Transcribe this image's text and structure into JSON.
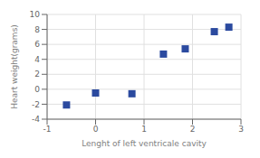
{
  "chart_data": {
    "type": "scatter",
    "x": [
      -0.6,
      0.0,
      0.75,
      1.4,
      1.85,
      2.45,
      2.75
    ],
    "values": [
      -2.1,
      -0.5,
      -0.6,
      4.7,
      5.4,
      7.7,
      8.3
    ],
    "color": "#2b4a9f",
    "marker": "square",
    "xlabel": "Lenght of left ventricale cavity",
    "ylabel": "Heart weight(grams)",
    "xlim": [
      -1,
      3
    ],
    "ylim": [
      -4,
      10
    ],
    "xticks": [
      -1,
      0,
      1,
      2,
      3
    ],
    "yticks": [
      -4,
      -2,
      0,
      2,
      4,
      6,
      8,
      10
    ],
    "grid": true
  }
}
